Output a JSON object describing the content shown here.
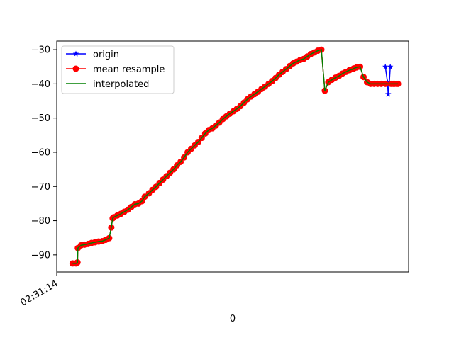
{
  "chart_data": {
    "type": "line",
    "xlabel": "0",
    "ylabel": "",
    "title": "",
    "x_tick_labels": [
      "02:31:14"
    ],
    "xlim": [
      0,
      100
    ],
    "ylim": [
      -95,
      -27.5
    ],
    "y_ticks": [
      -90,
      -80,
      -70,
      -60,
      -50,
      -40,
      -30
    ],
    "grid": false,
    "legend_placement": "upper-left",
    "legend": [
      {
        "label": "origin",
        "color": "#0000ff",
        "marker": "star"
      },
      {
        "label": "mean resample",
        "color": "#ff0000",
        "marker": "circle"
      },
      {
        "label": "interpolated",
        "color": "#008000",
        "marker": "none"
      }
    ],
    "series": [
      {
        "name": "mean resample",
        "color": "#ff0000",
        "x": [
          4.5,
          5.5,
          5.9,
          6.0,
          6.9,
          7.9,
          8.9,
          9.9,
          10.9,
          11.9,
          12.9,
          13.9,
          14.9,
          15.5,
          15.9,
          16.2,
          17.2,
          18.2,
          19.2,
          20.2,
          21.2,
          22.2,
          23.2,
          24.2,
          25.0,
          26.2,
          27.2,
          28.2,
          29.2,
          30.2,
          31.2,
          32.2,
          33.2,
          34.2,
          35.2,
          36.2,
          37.2,
          38.2,
          39.2,
          40.2,
          41.2,
          42.2,
          43.2,
          44.2,
          45.2,
          46.2,
          47.2,
          48.2,
          49.2,
          50.2,
          51.2,
          52.2,
          53.2,
          54.2,
          55.2,
          56.2,
          57.2,
          58.2,
          59.2,
          60.2,
          61.2,
          62.2,
          63.2,
          64.2,
          65.2,
          66.2,
          67.2,
          68.2,
          69.2,
          70.2,
          71.2,
          72.2,
          73.2,
          74.2,
          75.2,
          76.2,
          77.2,
          78.2,
          79.2,
          80.2,
          81.2,
          82.2,
          83.2,
          84.2,
          84.4,
          85.2,
          86.2,
          87.2,
          88.2,
          89.2,
          90.2,
          91.2,
          92.2,
          93.4,
          95.0,
          95.6,
          96.0,
          96.6,
          97.0
        ],
        "y": [
          -92.5,
          -92.5,
          -92.2,
          -88.0,
          -87.2,
          -87.0,
          -86.8,
          -86.5,
          -86.3,
          -86.1,
          -86.0,
          -85.6,
          -85.1,
          -82.0,
          -79.3,
          -79.0,
          -78.5,
          -78.0,
          -77.4,
          -76.8,
          -76.0,
          -75.2,
          -75.0,
          -74.3,
          -73.0,
          -72.0,
          -71.0,
          -70.1,
          -69.0,
          -68.0,
          -67.0,
          -66.0,
          -65.0,
          -63.8,
          -62.8,
          -61.5,
          -60.0,
          -59.0,
          -58.0,
          -57.0,
          -55.8,
          -54.5,
          -53.5,
          -53.0,
          -52.2,
          -51.3,
          -50.3,
          -49.5,
          -48.7,
          -48.0,
          -47.3,
          -46.5,
          -45.5,
          -44.5,
          -43.7,
          -43.0,
          -42.3,
          -41.5,
          -40.8,
          -40.0,
          -39.2,
          -38.3,
          -37.3,
          -36.5,
          -35.7,
          -34.8,
          -34.0,
          -33.5,
          -33.0,
          -32.7,
          -32.0,
          -31.3,
          -30.8,
          -30.3,
          -30.0,
          -42.0,
          -39.5,
          -38.8,
          -38.2,
          -37.7,
          -37.0,
          -36.5,
          -36.0,
          -35.7,
          -35.5,
          -35.2,
          -35.0,
          -38.0,
          -39.5,
          -40.0,
          -40.0,
          -40.0,
          -40.0,
          -40.0,
          -40.0,
          -40.0,
          -40.0,
          -40.0,
          -40.0
        ]
      },
      {
        "name": "origin",
        "color": "#0000ff",
        "x": [
          93.4,
          94.0,
          94.2,
          94.5,
          94.8
        ],
        "y": [
          -35.0,
          -39.5,
          -43.0,
          -40.0,
          -35.0
        ]
      }
    ]
  }
}
